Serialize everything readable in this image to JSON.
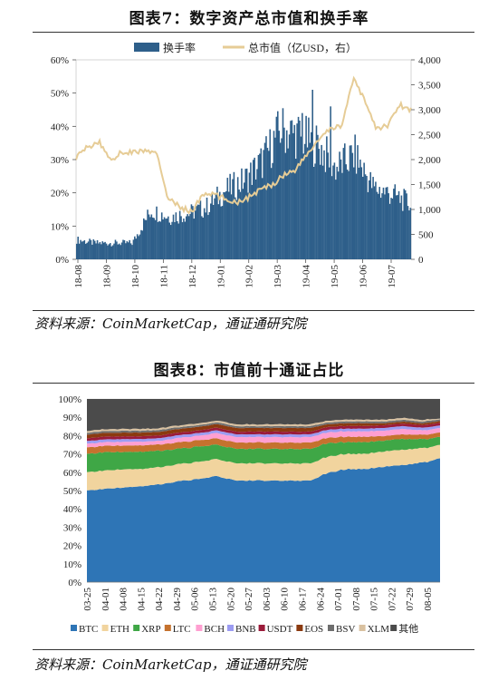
{
  "fig7": {
    "title": "图表7：数字资产总市值和换手率",
    "source": "资料来源：CoinMarketCap，通证通研究院"
  },
  "fig8": {
    "title": "图表8：市值前十通证占比",
    "source": "资料来源：CoinMarketCap，通证通研究院"
  },
  "chart_data": [
    {
      "type": "bar",
      "title": "数字资产总市值和换手率",
      "legend_position": "top",
      "grid": false,
      "x_ticks": [
        "18-08",
        "18-09",
        "18-10",
        "18-11",
        "18-12",
        "19-01",
        "19-02",
        "19-03",
        "19-04",
        "19-05",
        "19-06",
        "19-07"
      ],
      "y_left_ticks": [
        "0%",
        "10%",
        "20%",
        "30%",
        "40%",
        "50%",
        "60%"
      ],
      "y_right_ticks": [
        "0",
        "500",
        "1,000",
        "1,500",
        "2,000",
        "2,500",
        "3,000",
        "3,500",
        "4,000"
      ],
      "ylim_left": [
        0,
        60
      ],
      "ylim_right": [
        0,
        4000
      ],
      "colors": {
        "turnover": "#2e5f8a",
        "market_cap": "#e6cc96"
      },
      "series": [
        {
          "name": "换手率",
          "type": "bar",
          "axis": "left",
          "unit": "%",
          "x": [
            "18-08",
            "18-09",
            "18-10",
            "18-11",
            "18-11",
            "18-12",
            "19-01",
            "19-02",
            "19-03",
            "19-03",
            "19-04",
            "19-04",
            "19-05",
            "19-05",
            "19-06",
            "19-06",
            "19-07",
            "19-07",
            "19-08"
          ],
          "values": [
            6,
            5,
            5,
            5,
            15,
            13,
            14,
            16,
            21,
            24,
            30,
            40,
            38,
            35,
            28,
            32,
            22,
            20,
            17
          ]
        },
        {
          "name": "总市值（亿USD，右）",
          "type": "line",
          "axis": "right",
          "x": [
            "18-08",
            "18-08",
            "18-09",
            "18-09",
            "18-09",
            "18-10",
            "18-10",
            "18-11",
            "18-11",
            "18-11",
            "18-12",
            "18-12",
            "19-01",
            "19-01",
            "19-02",
            "19-02",
            "19-03",
            "19-03",
            "19-04",
            "19-04",
            "19-05",
            "19-05",
            "19-05",
            "19-06",
            "19-06",
            "19-06",
            "19-07",
            "19-07",
            "19-07",
            "19-08"
          ],
          "values": [
            2050,
            2250,
            2350,
            2000,
            2150,
            2150,
            2180,
            2100,
            1200,
            1050,
            950,
            1300,
            1300,
            1200,
            1150,
            1250,
            1400,
            1500,
            1700,
            1800,
            2100,
            2400,
            2600,
            2700,
            3600,
            3200,
            2600,
            2700,
            3100,
            3000
          ]
        }
      ]
    },
    {
      "type": "area",
      "title": "市值前十通证占比",
      "stacked": true,
      "legend_position": "bottom",
      "grid": true,
      "ylim": [
        0,
        100
      ],
      "y_ticks": [
        "0%",
        "10%",
        "20%",
        "30%",
        "40%",
        "50%",
        "60%",
        "70%",
        "80%",
        "90%",
        "100%"
      ],
      "x_ticks": [
        "03-25",
        "04-01",
        "04-08",
        "04-15",
        "04-22",
        "04-29",
        "05-06",
        "05-13",
        "05-20",
        "05-27",
        "06-03",
        "06-10",
        "06-17",
        "06-24",
        "07-01",
        "07-08",
        "07-15",
        "07-22",
        "07-29",
        "08-05"
      ],
      "series": [
        {
          "name": "BTC",
          "color": "#2e75b6",
          "values": [
            50,
            51,
            52,
            53,
            54,
            56,
            57,
            59,
            56,
            56,
            56,
            56,
            56,
            61,
            63,
            63,
            64,
            65,
            66,
            69
          ]
        },
        {
          "name": "ETH",
          "color": "#f1d49e",
          "values": [
            10,
            10,
            10,
            9.5,
            9.5,
            9.5,
            9.5,
            9.5,
            9.5,
            9.5,
            9.5,
            9.5,
            9.5,
            9,
            8.5,
            8.5,
            8.5,
            8.5,
            8,
            7.5
          ]
        },
        {
          "name": "XRP",
          "color": "#3fa746",
          "values": [
            10,
            10,
            9.5,
            9.5,
            9,
            8.5,
            8.5,
            8,
            8,
            8,
            8,
            8,
            8,
            7.5,
            6.5,
            6.5,
            6,
            6,
            5,
            4.5
          ]
        },
        {
          "name": "LTC",
          "color": "#c5722e",
          "values": [
            3.5,
            3.5,
            3.5,
            3.5,
            3.5,
            3.5,
            3.5,
            3.5,
            3.5,
            3.5,
            3.5,
            3.5,
            3.5,
            3,
            3,
            3,
            2.5,
            2.5,
            2.5,
            2.5
          ]
        },
        {
          "name": "BCH",
          "color": "#ff9fd1",
          "values": [
            2,
            2,
            2,
            2,
            2,
            2.5,
            2.5,
            3,
            3,
            3,
            3,
            3,
            3,
            3,
            3,
            3,
            3,
            3,
            2.5,
            2.5
          ]
        },
        {
          "name": "BNB",
          "color": "#9c9cf2",
          "values": [
            1.5,
            1.5,
            1.5,
            1.5,
            1.5,
            1.5,
            1.5,
            1.5,
            1.5,
            1.5,
            1.5,
            1.5,
            1.5,
            1.5,
            1.5,
            1.5,
            1.5,
            1.5,
            1.5,
            1.5
          ]
        },
        {
          "name": "USDT",
          "color": "#9b1b3a",
          "values": [
            1.5,
            1.5,
            1.5,
            1.5,
            1.5,
            1.5,
            1.5,
            1.5,
            1.5,
            1.5,
            1.5,
            1.5,
            1.5,
            1.5,
            1.5,
            1.5,
            1.5,
            1.5,
            1.5,
            1.5
          ]
        },
        {
          "name": "EOS",
          "color": "#8b3a0f",
          "values": [
            2,
            2,
            2,
            2,
            2,
            2,
            2,
            2,
            2,
            2,
            2,
            2,
            2,
            1.5,
            1.5,
            1.5,
            1,
            1,
            1,
            1
          ]
        },
        {
          "name": "BSV",
          "color": "#6e6e6e",
          "values": [
            1,
            1,
            1,
            1,
            1,
            1,
            1,
            1,
            1,
            1,
            1,
            1,
            1,
            1,
            1,
            1,
            1,
            1,
            1,
            1
          ]
        },
        {
          "name": "XLM",
          "color": "#d9c1a0",
          "values": [
            1,
            1,
            1,
            1,
            1,
            1,
            1,
            1,
            1,
            1,
            1,
            1,
            1,
            1,
            1,
            1,
            1,
            1,
            1,
            0.5
          ]
        },
        {
          "name": "其他",
          "color": "#4b4b4b",
          "values": [
            17.5,
            16.5,
            16.5,
            16.5,
            16,
            14.5,
            13.5,
            12,
            14,
            14,
            14,
            14,
            14,
            12,
            11.5,
            11.5,
            11.5,
            10.5,
            11.5,
            11
          ]
        }
      ]
    }
  ]
}
